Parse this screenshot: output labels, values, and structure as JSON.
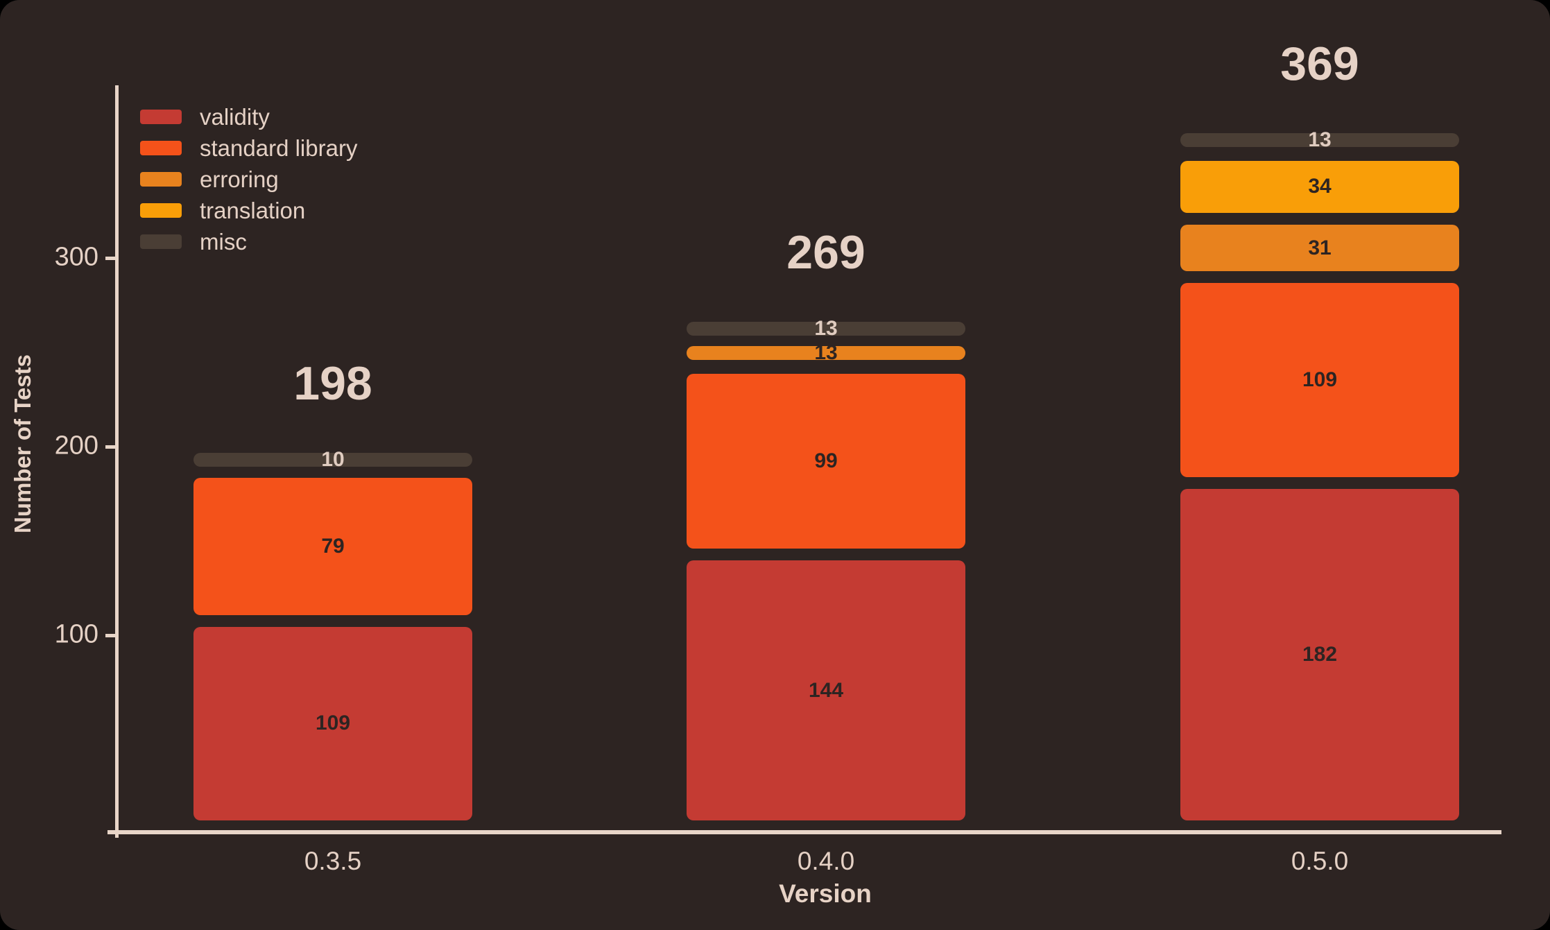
{
  "chart_data": {
    "type": "bar",
    "stacked": true,
    "xlabel": "Version",
    "ylabel": "Number of Tests",
    "categories": [
      "0.3.5",
      "0.4.0",
      "0.5.0"
    ],
    "totals": [
      198,
      269,
      369
    ],
    "series": [
      {
        "name": "validity",
        "color": "#c43b33",
        "label_color": "#2d2422",
        "values": [
          109,
          144,
          182
        ]
      },
      {
        "name": "standard library",
        "color": "#f4521a",
        "label_color": "#2d2422",
        "values": [
          79,
          99,
          109
        ]
      },
      {
        "name": "erroring",
        "color": "#e8821e",
        "label_color": "#2d2422",
        "values": [
          0,
          13,
          31
        ]
      },
      {
        "name": "translation",
        "color": "#f99e08",
        "label_color": "#2d2422",
        "values": [
          0,
          0,
          34
        ]
      },
      {
        "name": "misc",
        "color": "#4a3e35",
        "label_color": "#e0ccc0",
        "values": [
          10,
          13,
          13
        ]
      }
    ],
    "yticks": [
      100,
      200,
      300
    ],
    "ylim": [
      0,
      395
    ],
    "legend_position": "top-left",
    "grid": false,
    "colors": {
      "background": "#2d2422",
      "axis": "#e8d5c8",
      "text": "#e5d1c5"
    }
  }
}
